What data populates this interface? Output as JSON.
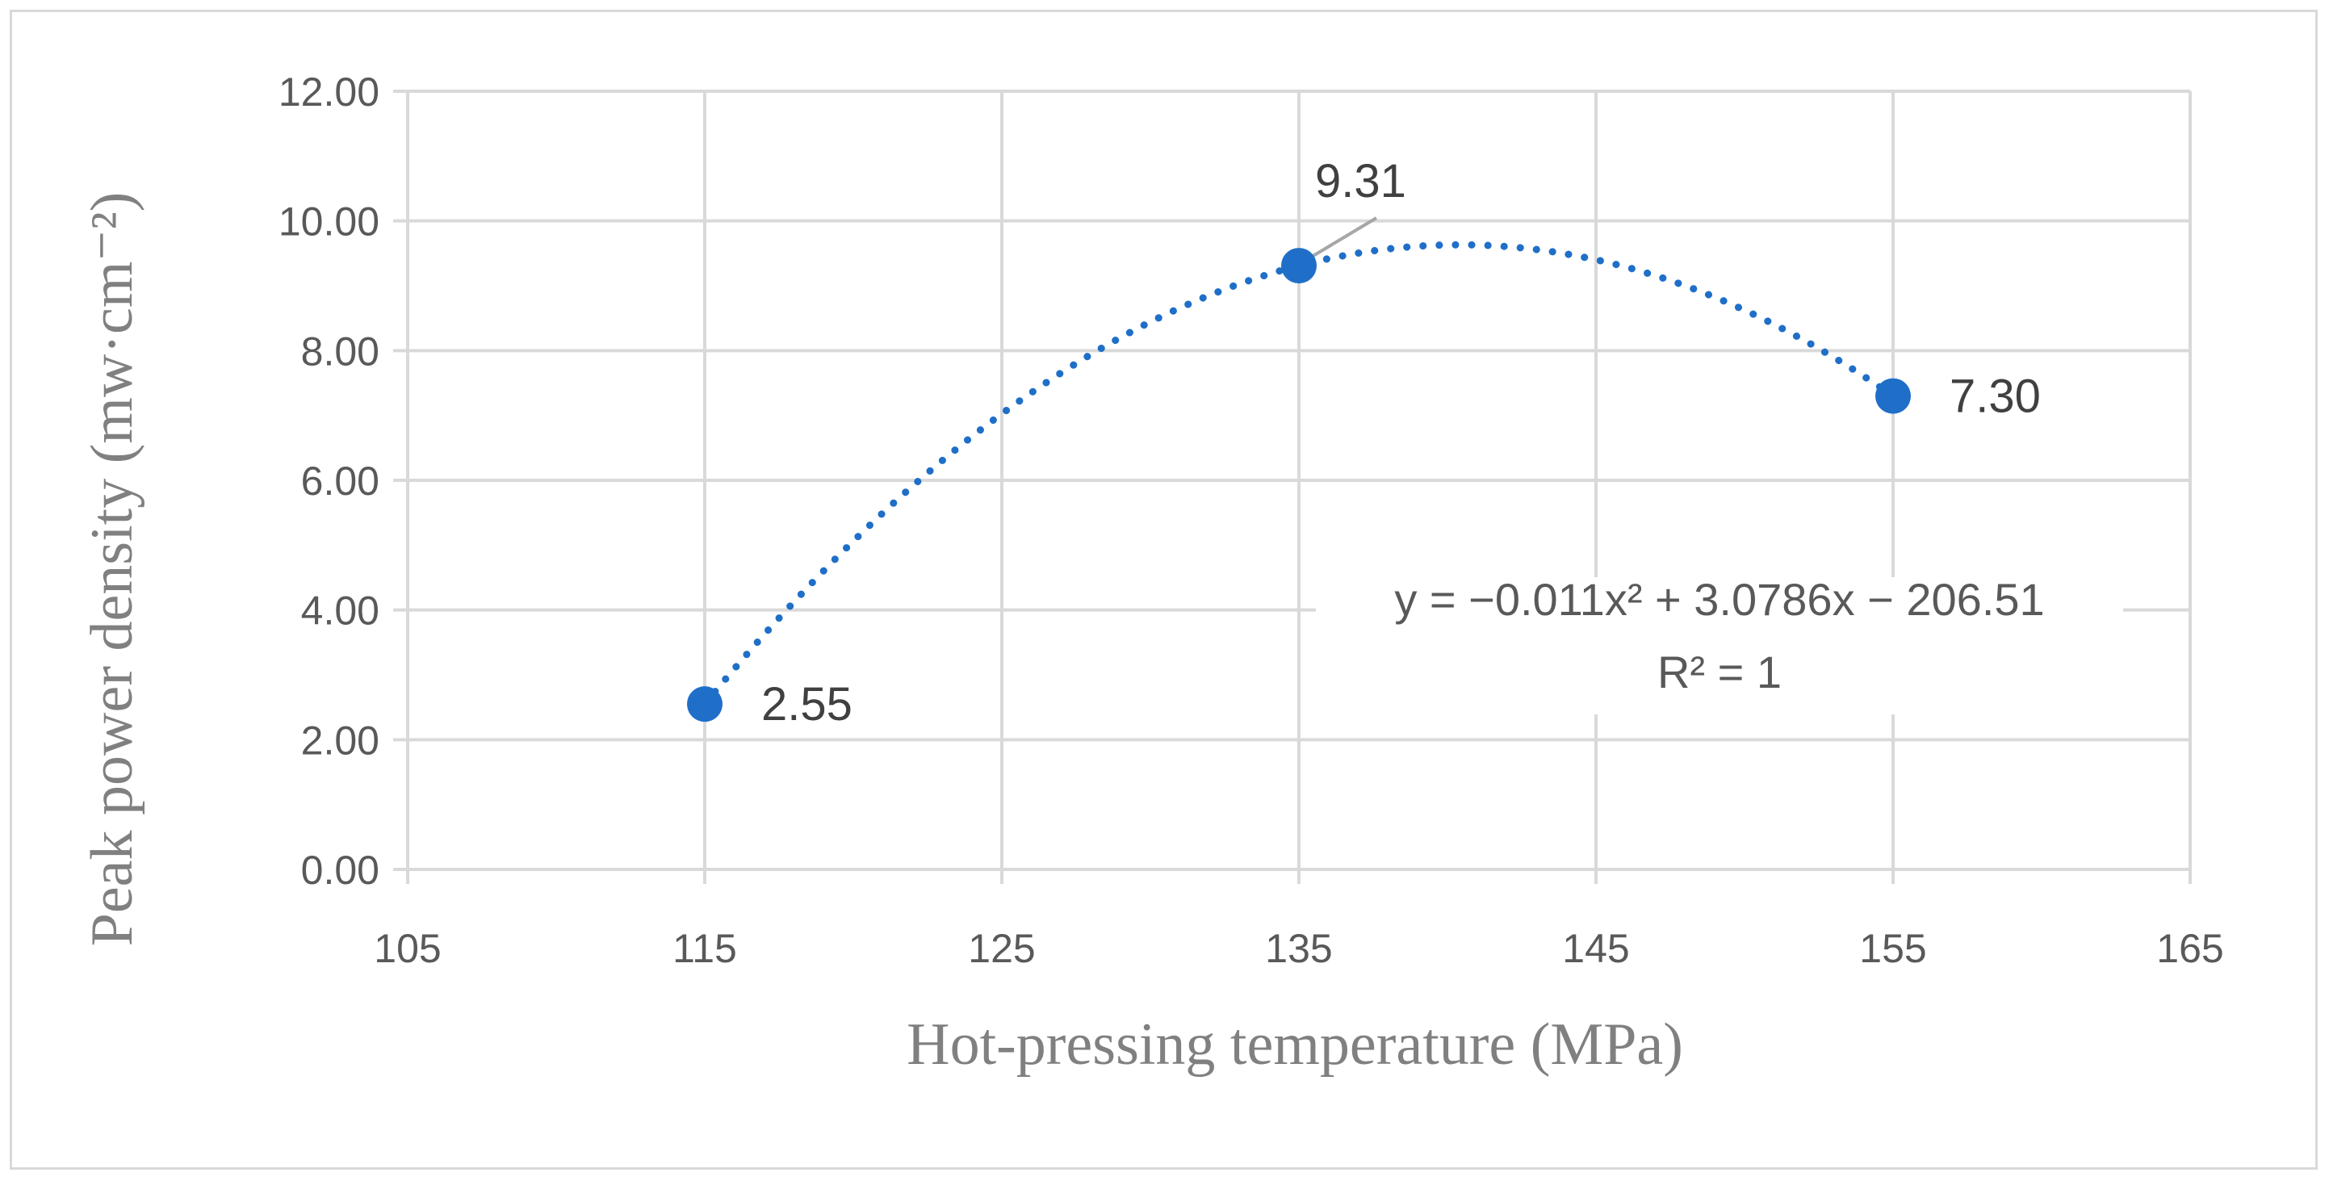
{
  "chart_data": {
    "type": "scatter",
    "xlabel": "Hot-pressing temperature (MPa)",
    "ylabel": "Peak power density (mw·cm⁻²)",
    "xlim": [
      105,
      165
    ],
    "ylim": [
      0,
      12
    ],
    "x_ticks": [
      "105",
      "115",
      "125",
      "135",
      "145",
      "155",
      "165"
    ],
    "y_ticks": [
      "0.00",
      "2.00",
      "4.00",
      "6.00",
      "8.00",
      "10.00",
      "12.00"
    ],
    "grid": true,
    "series": [
      {
        "name": "Peak power density",
        "x": [
          115,
          135,
          155
        ],
        "y": [
          2.55,
          9.31,
          7.3
        ],
        "labels": [
          "2.55",
          "9.31",
          "7.30"
        ],
        "color": "#1f6fc8"
      }
    ],
    "trendline": {
      "type": "polynomial",
      "order": 2,
      "style": "dotted",
      "color": "#1f6fc8",
      "equation": "y = −0.011x² + 3.0786x − 206.51",
      "r_squared": "R² = 1"
    }
  }
}
